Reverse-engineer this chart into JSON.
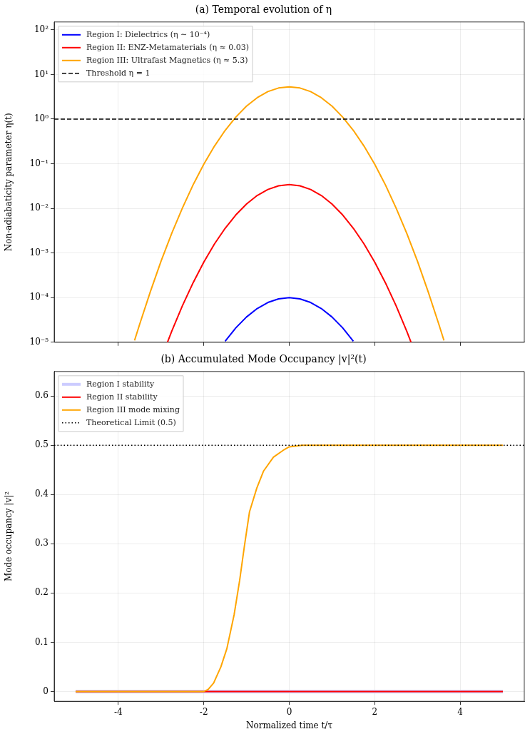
{
  "chart_data": [
    {
      "type": "line",
      "title": "(a) Temporal evolution of η",
      "ylabel": "Non-adiabaticity parameter η(t)",
      "log": "y",
      "grid": true,
      "legend": "top left",
      "tick_labels": "y",
      "xlim": [
        -5.5,
        5.5
      ],
      "xticks": [
        -4,
        -2,
        0,
        2,
        4
      ],
      "ylim": [
        1e-05,
        150
      ],
      "yticks": [
        {
          "value": 1e-05,
          "label": "10⁻⁵"
        },
        {
          "value": 0.0001,
          "label": "10⁻⁴"
        },
        {
          "value": 0.001,
          "label": "10⁻³"
        },
        {
          "value": 0.01,
          "label": "10⁻²"
        },
        {
          "value": 0.1,
          "label": "10⁻¹"
        },
        {
          "value": 1,
          "label": "10⁰"
        },
        {
          "value": 10,
          "label": "10¹"
        },
        {
          "value": 100,
          "label": "10²"
        }
      ],
      "series": [
        {
          "name": "Region I: Dielectrics (η ∼ 10⁻⁴)",
          "color": "#0000ff",
          "x": [
            -1.5,
            -1.25,
            -1,
            -0.75,
            -0.5,
            -0.25,
            0,
            0.25,
            0.5,
            0.75,
            1,
            1.25,
            1.5
          ],
          "values": [
            1.05e-05,
            2.1e-05,
            3.68e-05,
            5.7e-05,
            7.79e-05,
            9.39e-05,
            0.0001,
            9.39e-05,
            7.79e-05,
            5.7e-05,
            3.68e-05,
            2.1e-05,
            1.05e-05
          ]
        },
        {
          "name": "Region II: ENZ-Metamaterials (η ≈ 0.03)",
          "color": "#ff0000",
          "x": [
            -2.85,
            -2.75,
            -2.5,
            -2.25,
            -2,
            -1.75,
            -1.5,
            -1.25,
            -1,
            -0.75,
            -0.5,
            -0.25,
            0,
            0.25,
            0.5,
            0.75,
            1,
            1.25,
            1.5,
            1.75,
            2,
            2.25,
            2.5,
            2.75,
            2.85
          ],
          "values": [
            1e-05,
            1.77e-05,
            6.56e-05,
            0.000215,
            0.000623,
            0.00159,
            0.00358,
            0.00713,
            0.0125,
            0.0194,
            0.0265,
            0.0319,
            0.034,
            0.0319,
            0.0265,
            0.0194,
            0.0125,
            0.00713,
            0.00358,
            0.00159,
            0.000623,
            0.000215,
            6.56e-05,
            1.77e-05,
            1e-05
          ]
        },
        {
          "name": "Region III: Ultrafast Magnetics (η ≈ 5.3)",
          "color": "#ffa500",
          "x": [
            -3.62,
            -3.5,
            -3.25,
            -3,
            -2.75,
            -2.5,
            -2.25,
            -2,
            -1.75,
            -1.5,
            -1.25,
            -1,
            -0.75,
            -0.5,
            -0.25,
            0,
            0.25,
            0.5,
            0.75,
            1,
            1.25,
            1.5,
            1.75,
            2,
            2.25,
            2.5,
            2.75,
            3,
            3.25,
            3.5,
            3.62
          ],
          "values": [
            1.1e-05,
            2.54e-05,
            0.000136,
            0.000654,
            0.00276,
            0.0102,
            0.0336,
            0.0971,
            0.248,
            0.559,
            1.11,
            1.95,
            3.02,
            4.13,
            4.98,
            5.3,
            4.98,
            4.13,
            3.02,
            1.95,
            1.11,
            0.559,
            0.248,
            0.0971,
            0.0336,
            0.0102,
            0.00276,
            0.000654,
            0.000136,
            2.54e-05,
            1.1e-05
          ]
        }
      ],
      "ref_lines": [
        {
          "axis": "y",
          "value": 1,
          "label": "Threshold η = 1",
          "color": "#000000",
          "line_style": "dashed"
        }
      ]
    },
    {
      "type": "line",
      "title": "(b) Accumulated Mode Occupancy |v|²(t)",
      "xlabel": "Normalized time t/τ",
      "ylabel": "Mode occupancy |v|²",
      "grid": true,
      "legend": "top left",
      "xlim": [
        -5.5,
        5.5
      ],
      "xticks": [
        -4,
        -2,
        0,
        2,
        4
      ],
      "ylim": [
        -0.02,
        0.65
      ],
      "yticks": [
        0,
        0.1,
        0.2,
        0.3,
        0.4,
        0.5,
        0.6
      ],
      "series": [
        {
          "name": "Region I stability",
          "color": "#ccccff",
          "x": [
            -5,
            5
          ],
          "values": [
            0,
            0
          ]
        },
        {
          "name": "Region II stability",
          "color": "#ff0000",
          "x": [
            -5,
            5
          ],
          "values": [
            0,
            0
          ]
        },
        {
          "name": "Region III mode mixing",
          "color": "#ffa500",
          "x": [
            -5,
            -2,
            -1.9,
            -1.77,
            -1.6,
            -1.46,
            -1.29,
            -1.16,
            -1.05,
            -0.93,
            -0.76,
            -0.6,
            -0.37,
            -0.14,
            0,
            0.3,
            5
          ],
          "values": [
            0,
            0,
            0.004,
            0.017,
            0.05,
            0.087,
            0.156,
            0.226,
            0.295,
            0.365,
            0.413,
            0.448,
            0.476,
            0.49,
            0.497,
            0.5,
            0.5
          ]
        }
      ],
      "ref_lines": [
        {
          "axis": "y",
          "value": 0.5,
          "label": "Theoretical Limit (0.5)",
          "color": "#000000",
          "line_style": "dotted"
        }
      ]
    }
  ]
}
